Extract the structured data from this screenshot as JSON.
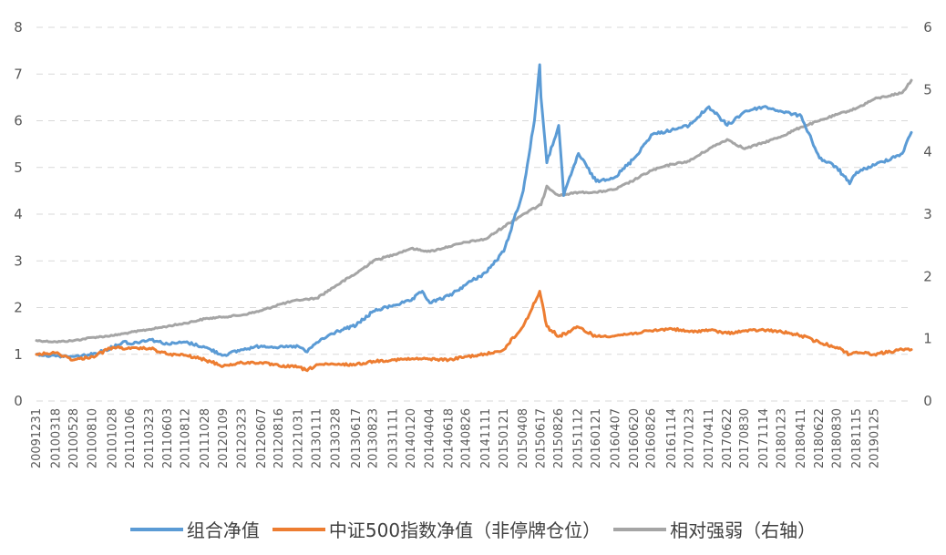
{
  "chart_data": {
    "type": "line",
    "title": "",
    "left_axis": {
      "min": 0,
      "max": 8,
      "ticks": [
        "0",
        "1",
        "2",
        "3",
        "4",
        "5",
        "6",
        "7",
        "8"
      ]
    },
    "right_axis": {
      "min": 0,
      "max": 6,
      "ticks": [
        "0",
        "1",
        "2",
        "3",
        "4",
        "5",
        "6"
      ]
    },
    "grid": true,
    "legend_position": "bottom",
    "x_start": "20091231",
    "x_end": "20190620",
    "x_tick_labels": [
      "20091231",
      "20100318",
      "20100528",
      "20100810",
      "20101028",
      "20110106",
      "20110323",
      "20110603",
      "20110812",
      "20111028",
      "20120109",
      "20120323",
      "20120607",
      "20120816",
      "20121031",
      "20130111",
      "20130328",
      "20130617",
      "20130823",
      "20131111",
      "20140120",
      "20140404",
      "20140618",
      "20140826",
      "20141111",
      "20150121",
      "20150408",
      "20150617",
      "20150826",
      "20151112",
      "20160121",
      "20160407",
      "20160620",
      "20160826",
      "20161114",
      "20170123",
      "20170411",
      "20170622",
      "20170830",
      "20171114",
      "20180123",
      "20180411",
      "20180622",
      "20180830",
      "20181115",
      "20190125"
    ],
    "series": [
      {
        "name": "组合净值",
        "color": "#5b9bd5",
        "axis": "left",
        "points": [
          [
            "20091231",
            1.0
          ],
          [
            "20100318",
            0.96
          ],
          [
            "20100528",
            0.95
          ],
          [
            "20100810",
            1.0
          ],
          [
            "20101028",
            1.15
          ],
          [
            "20101215",
            1.28
          ],
          [
            "20110106",
            1.22
          ],
          [
            "20110323",
            1.32
          ],
          [
            "20110603",
            1.22
          ],
          [
            "20110812",
            1.26
          ],
          [
            "20111028",
            1.15
          ],
          [
            "20120109",
            0.98
          ],
          [
            "20120323",
            1.1
          ],
          [
            "20120607",
            1.18
          ],
          [
            "20120816",
            1.15
          ],
          [
            "20121031",
            1.17
          ],
          [
            "20121205",
            1.05
          ],
          [
            "20130111",
            1.25
          ],
          [
            "20130328",
            1.48
          ],
          [
            "20130617",
            1.62
          ],
          [
            "20130823",
            1.92
          ],
          [
            "20131111",
            2.05
          ],
          [
            "20140120",
            2.15
          ],
          [
            "20140305",
            2.35
          ],
          [
            "20140404",
            2.1
          ],
          [
            "20140618",
            2.25
          ],
          [
            "20140826",
            2.5
          ],
          [
            "20141111",
            2.75
          ],
          [
            "20150121",
            3.2
          ],
          [
            "20150408",
            4.5
          ],
          [
            "20150522",
            6.0
          ],
          [
            "20150612",
            7.2
          ],
          [
            "20150617",
            6.5
          ],
          [
            "20150710",
            5.1
          ],
          [
            "20150826",
            5.9
          ],
          [
            "20150915",
            4.4
          ],
          [
            "20151112",
            5.3
          ],
          [
            "20160121",
            4.7
          ],
          [
            "20160407",
            4.8
          ],
          [
            "20160620",
            5.2
          ],
          [
            "20160826",
            5.7
          ],
          [
            "20161114",
            5.8
          ],
          [
            "20170123",
            5.9
          ],
          [
            "20170411",
            6.3
          ],
          [
            "20170622",
            5.9
          ],
          [
            "20170830",
            6.2
          ],
          [
            "20171114",
            6.3
          ],
          [
            "20180123",
            6.2
          ],
          [
            "20180411",
            6.1
          ],
          [
            "20180622",
            5.2
          ],
          [
            "20180830",
            5.0
          ],
          [
            "20181019",
            4.65
          ],
          [
            "20181115",
            4.9
          ],
          [
            "20190125",
            5.05
          ],
          [
            "20190515",
            5.3
          ],
          [
            "20190620",
            5.75
          ]
        ]
      },
      {
        "name": "中证500指数净值（非停牌仓位）",
        "color": "#ed7d31",
        "axis": "left",
        "points": [
          [
            "20091231",
            1.0
          ],
          [
            "20100318",
            1.03
          ],
          [
            "20100528",
            0.88
          ],
          [
            "20100810",
            0.95
          ],
          [
            "20101028",
            1.15
          ],
          [
            "20110106",
            1.12
          ],
          [
            "20110323",
            1.13
          ],
          [
            "20110603",
            1.0
          ],
          [
            "20110812",
            0.98
          ],
          [
            "20111028",
            0.88
          ],
          [
            "20120109",
            0.75
          ],
          [
            "20120323",
            0.82
          ],
          [
            "20120607",
            0.82
          ],
          [
            "20120816",
            0.75
          ],
          [
            "20121031",
            0.73
          ],
          [
            "20121205",
            0.65
          ],
          [
            "20130111",
            0.78
          ],
          [
            "20130328",
            0.78
          ],
          [
            "20130617",
            0.78
          ],
          [
            "20130823",
            0.85
          ],
          [
            "20131111",
            0.88
          ],
          [
            "20140120",
            0.9
          ],
          [
            "20140404",
            0.9
          ],
          [
            "20140618",
            0.88
          ],
          [
            "20140826",
            0.95
          ],
          [
            "20141111",
            1.0
          ],
          [
            "20150121",
            1.1
          ],
          [
            "20150408",
            1.6
          ],
          [
            "20150612",
            2.35
          ],
          [
            "20150710",
            1.6
          ],
          [
            "20150826",
            1.38
          ],
          [
            "20151112",
            1.58
          ],
          [
            "20160121",
            1.38
          ],
          [
            "20160407",
            1.4
          ],
          [
            "20160620",
            1.45
          ],
          [
            "20160826",
            1.5
          ],
          [
            "20161114",
            1.55
          ],
          [
            "20170123",
            1.48
          ],
          [
            "20170411",
            1.52
          ],
          [
            "20170622",
            1.45
          ],
          [
            "20170830",
            1.5
          ],
          [
            "20171114",
            1.52
          ],
          [
            "20180123",
            1.48
          ],
          [
            "20180411",
            1.4
          ],
          [
            "20180622",
            1.25
          ],
          [
            "20180830",
            1.15
          ],
          [
            "20181019",
            1.0
          ],
          [
            "20181115",
            1.05
          ],
          [
            "20190125",
            1.0
          ],
          [
            "20190515",
            1.1
          ],
          [
            "20190620",
            1.1
          ]
        ]
      },
      {
        "name": "相对强弱（右轴）",
        "color": "#a5a5a5",
        "axis": "right",
        "points": [
          [
            "20091231",
            0.97
          ],
          [
            "20100318",
            0.95
          ],
          [
            "20100528",
            0.97
          ],
          [
            "20100810",
            1.02
          ],
          [
            "20101028",
            1.05
          ],
          [
            "20110106",
            1.1
          ],
          [
            "20110323",
            1.15
          ],
          [
            "20110603",
            1.2
          ],
          [
            "20110812",
            1.25
          ],
          [
            "20111028",
            1.32
          ],
          [
            "20120109",
            1.35
          ],
          [
            "20120323",
            1.38
          ],
          [
            "20120607",
            1.45
          ],
          [
            "20120816",
            1.55
          ],
          [
            "20121031",
            1.62
          ],
          [
            "20130111",
            1.65
          ],
          [
            "20130328",
            1.85
          ],
          [
            "20130617",
            2.05
          ],
          [
            "20130823",
            2.25
          ],
          [
            "20131111",
            2.35
          ],
          [
            "20140120",
            2.45
          ],
          [
            "20140404",
            2.4
          ],
          [
            "20140618",
            2.48
          ],
          [
            "20140826",
            2.55
          ],
          [
            "20141111",
            2.6
          ],
          [
            "20150121",
            2.8
          ],
          [
            "20150408",
            3.0
          ],
          [
            "20150617",
            3.15
          ],
          [
            "20150710",
            3.45
          ],
          [
            "20150826",
            3.3
          ],
          [
            "20151112",
            3.35
          ],
          [
            "20160121",
            3.35
          ],
          [
            "20160407",
            3.4
          ],
          [
            "20160620",
            3.55
          ],
          [
            "20160826",
            3.7
          ],
          [
            "20161114",
            3.8
          ],
          [
            "20170123",
            3.85
          ],
          [
            "20170411",
            4.05
          ],
          [
            "20170622",
            4.2
          ],
          [
            "20170830",
            4.05
          ],
          [
            "20171114",
            4.15
          ],
          [
            "20180123",
            4.25
          ],
          [
            "20180411",
            4.4
          ],
          [
            "20180622",
            4.5
          ],
          [
            "20180830",
            4.6
          ],
          [
            "20181115",
            4.7
          ],
          [
            "20190125",
            4.85
          ],
          [
            "20190515",
            4.95
          ],
          [
            "20190620",
            5.15
          ]
        ]
      }
    ]
  }
}
